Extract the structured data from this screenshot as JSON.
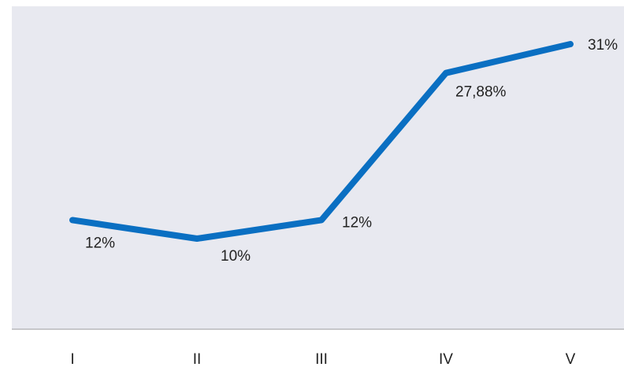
{
  "chart_data": {
    "type": "line",
    "categories": [
      "I",
      "II",
      "III",
      "IV",
      "V"
    ],
    "series": [
      {
        "color": "#0a6fc2",
        "values": [
          12,
          10,
          12,
          27.88,
          31
        ],
        "value_labels": [
          "12%",
          "10%",
          "12%",
          "27,88%",
          "31%"
        ]
      }
    ]
  }
}
